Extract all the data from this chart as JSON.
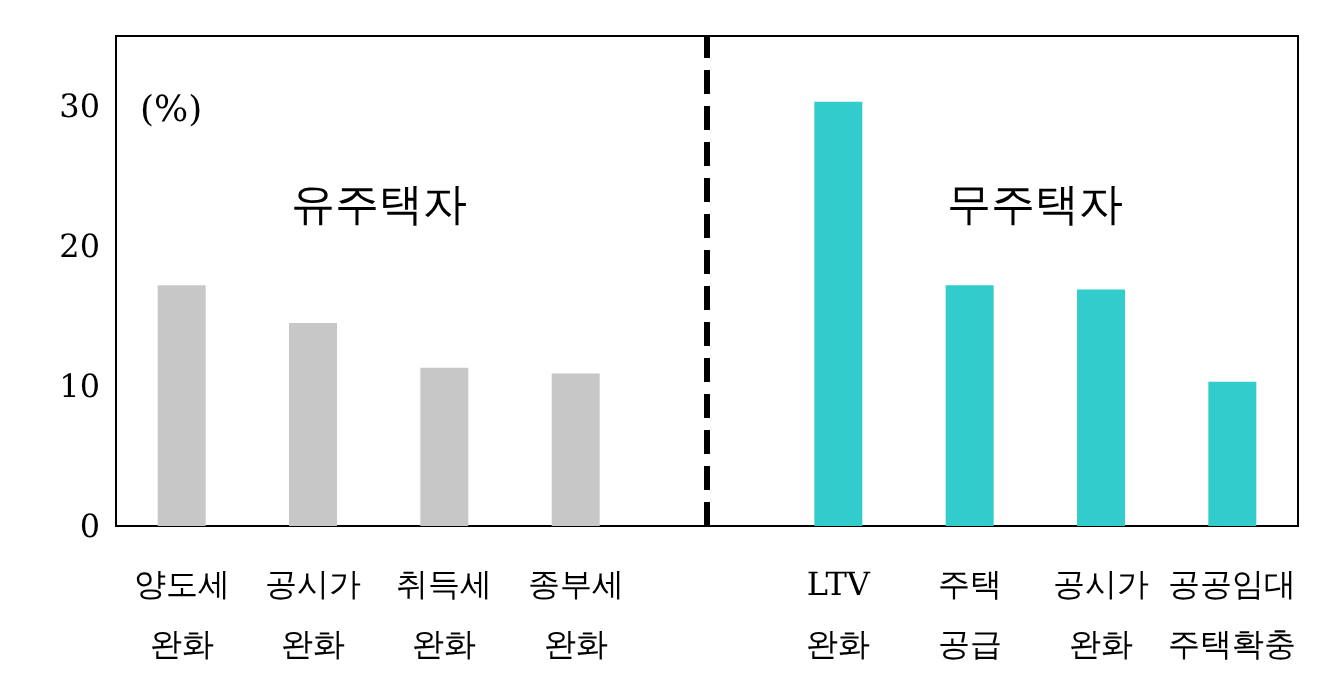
{
  "chart_data": {
    "type": "bar",
    "ylabel": "(%)",
    "categories": [
      "양도세\n완화",
      "공시가\n완화",
      "취득세\n완화",
      "종부세\n완화",
      null,
      "LTV\n완화",
      "주택\n공급",
      "공시가\n완화",
      "공공임대\n주택확충"
    ],
    "values": [
      17.2,
      14.5,
      11.3,
      10.9,
      null,
      30.3,
      17.2,
      16.9,
      10.3
    ],
    "colors": [
      "#c8c7c7",
      "#c8c7c7",
      "#c8c7c7",
      "#c8c7c7",
      null,
      "#33cccc",
      "#33cccc",
      "#33cccc",
      "#33cccc"
    ],
    "annotations": [
      "유주택자",
      "무주택자"
    ],
    "ref_lines": [
      {
        "axis": "x",
        "value": null,
        "line_style": "dashed",
        "color": "#000000"
      }
    ],
    "ylim": [
      0,
      35
    ],
    "yticks": [
      0,
      10,
      20,
      30
    ]
  }
}
